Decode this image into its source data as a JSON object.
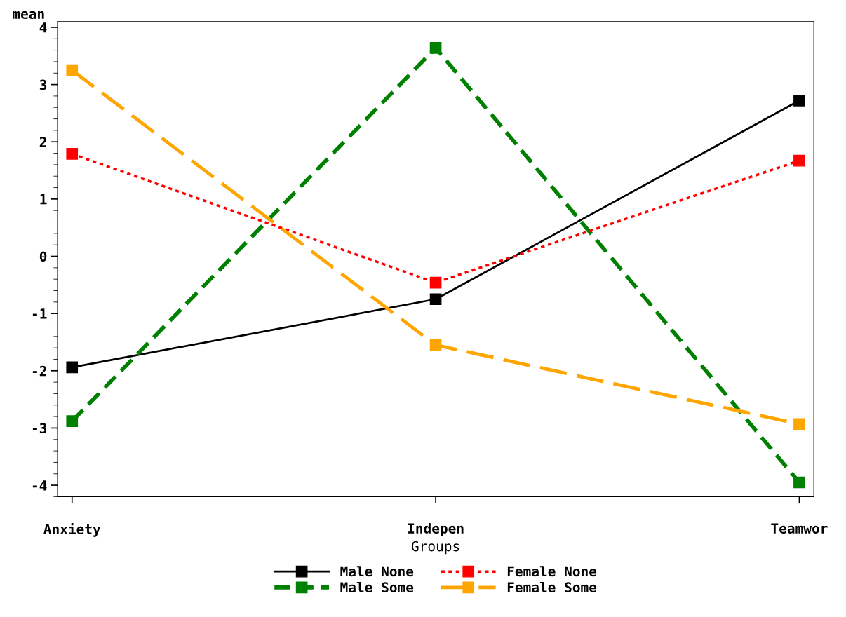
{
  "chart_data": {
    "type": "line",
    "xlabel": "Groups",
    "ylabel": "mean",
    "categories": [
      "Anxiety",
      "Indepen",
      "Teamwor"
    ],
    "series": [
      {
        "name": "Male None",
        "color": "#000000",
        "line_style": "solid",
        "values": [
          -1.94,
          -0.75,
          2.72
        ]
      },
      {
        "name": "Male Some",
        "color": "#008000",
        "line_style": "dashed",
        "values": [
          -2.88,
          3.64,
          -3.95
        ]
      },
      {
        "name": "Female None",
        "color": "#ff0000",
        "line_style": "dotted",
        "values": [
          1.79,
          -0.46,
          1.67
        ]
      },
      {
        "name": "Female Some",
        "color": "#ffa500",
        "line_style": "longdash",
        "values": [
          3.25,
          -1.55,
          -2.93
        ]
      }
    ],
    "ylim": [
      -4.2,
      4.1
    ],
    "yticks": [
      -4,
      -3,
      -2,
      -1,
      0,
      1,
      2,
      3,
      4
    ],
    "marker": "square",
    "grid": false,
    "legend": "bottom"
  }
}
